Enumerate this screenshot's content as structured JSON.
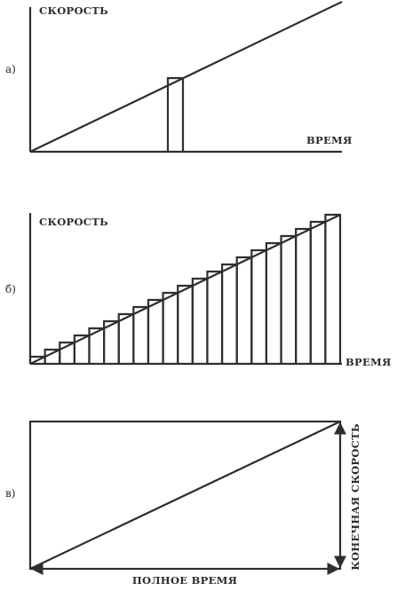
{
  "panels": {
    "a": {
      "letter": "а)",
      "ylabel": "СКОРОСТЬ",
      "xlabel": "ВРЕМЯ"
    },
    "b": {
      "letter": "б)",
      "ylabel": "СКОРОСТЬ",
      "xlabel": "ВРЕМЯ",
      "strip_count": 21
    },
    "c": {
      "letter": "в)",
      "xlabel": "ПОЛНОЕ ВРЕМЯ",
      "ylabel": "КОНЕЧНАЯ СКОРОСТЬ"
    }
  },
  "colors": {
    "ink": "#2f2f2f",
    "text": "#2b2b2b",
    "background": "#ffffff"
  }
}
